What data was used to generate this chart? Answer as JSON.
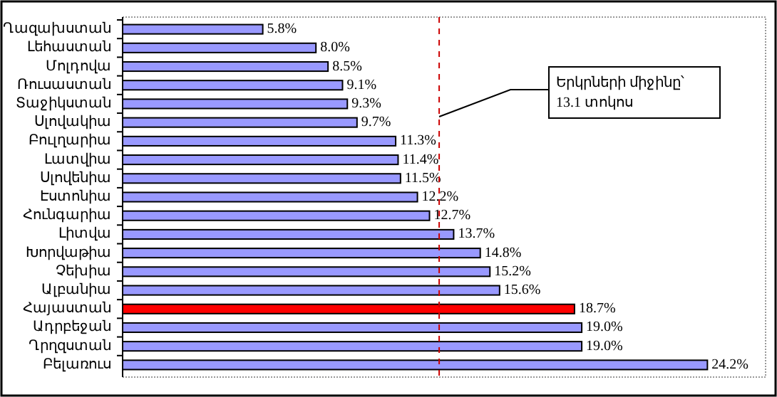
{
  "chart_data": {
    "type": "bar",
    "orientation": "horizontal",
    "categories": [
      "Ղազախստան",
      "Լեհաստան",
      "Մոլդովա",
      "Ռուսաստան",
      "Տաջիկստան",
      "Սլովակիա",
      "Բուլղարիա",
      "Լատվիա",
      "Սլովենիա",
      "Էստոնիա",
      "Հունգարիա",
      "Լիտվա",
      "Խորվաթիա",
      "Չեխիա",
      "Ալբանիա",
      "Հայաստան",
      "Ադրբեջան",
      "Ղրղզստան",
      "Բելառուս"
    ],
    "values": [
      5.8,
      8.0,
      8.5,
      9.1,
      9.3,
      9.7,
      11.3,
      11.4,
      11.5,
      12.2,
      12.7,
      13.7,
      14.8,
      15.2,
      15.6,
      18.7,
      19.0,
      19.0,
      24.2
    ],
    "value_labels": [
      "5.8%",
      "8.0%",
      "8.5%",
      "9.1%",
      "9.3%",
      "9.7%",
      "11.3%",
      "11.4%",
      "11.5%",
      "12.2%",
      "12.7%",
      "13.7%",
      "14.8%",
      "15.2%",
      "15.6%",
      "18.7%",
      "19.0%",
      "19.0%",
      "24.2%"
    ],
    "colors": [
      "#9999ff",
      "#9999ff",
      "#9999ff",
      "#9999ff",
      "#9999ff",
      "#9999ff",
      "#9999ff",
      "#9999ff",
      "#9999ff",
      "#9999ff",
      "#9999ff",
      "#9999ff",
      "#9999ff",
      "#9999ff",
      "#9999ff",
      "#ff0000",
      "#9999ff",
      "#9999ff",
      "#9999ff"
    ],
    "ref_lines": [
      {
        "axis": "x",
        "value": 13.1,
        "label": "Երկրների միջինը՝ 13.1 տոկոս",
        "color": "#cc0000",
        "line_style": "dashed"
      }
    ]
  }
}
